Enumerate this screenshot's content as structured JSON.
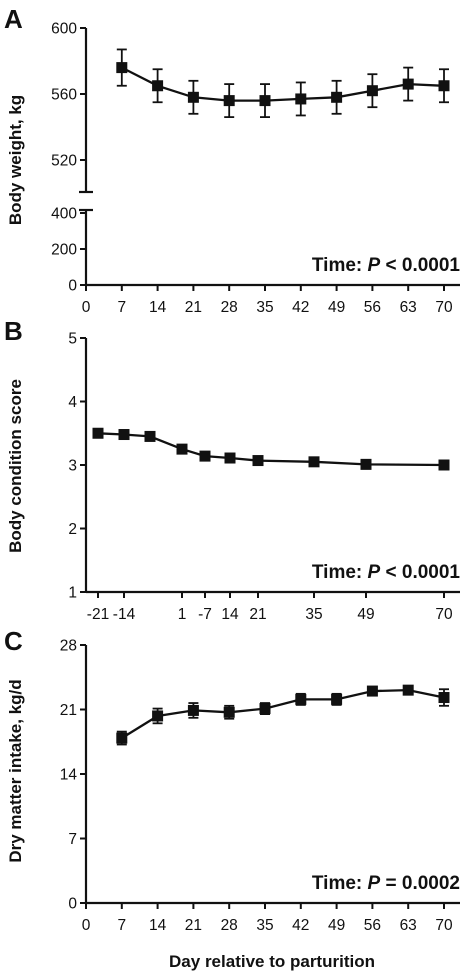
{
  "chart_data": [
    {
      "type": "line",
      "panel_letter": "A",
      "ylabel": "Body weight, kg",
      "annotation": {
        "prefix": "Time: ",
        "p": "P",
        "rest": " < 0.0001"
      },
      "ylim_upper": [
        500,
        600
      ],
      "ylim_lower": [
        0,
        400
      ],
      "yticks_upper": [
        520,
        560,
        600
      ],
      "yticks_lower": [
        0,
        200,
        400
      ],
      "x_ticks": [
        0,
        7,
        14,
        21,
        28,
        35,
        42,
        49,
        56,
        63,
        70
      ],
      "x_tick_labels": [
        "0",
        "7",
        "14",
        "21",
        "28",
        "35",
        "42",
        "49",
        "56",
        "63",
        "70"
      ],
      "series": [
        {
          "x": [
            7,
            14,
            21,
            28,
            35,
            42,
            49,
            56,
            63,
            70
          ],
          "y": [
            576,
            565,
            558,
            556,
            556,
            557,
            558,
            562,
            566,
            565
          ],
          "err": [
            11,
            10,
            10,
            10,
            10,
            10,
            10,
            10,
            10,
            10
          ]
        }
      ]
    },
    {
      "type": "line",
      "panel_letter": "B",
      "ylabel": "Body condition score",
      "annotation": {
        "prefix": "Time: ",
        "p": "P",
        "rest": " < 0.0001"
      },
      "ylim": [
        1,
        5
      ],
      "yticks": [
        1,
        2,
        3,
        4,
        5
      ],
      "x_tick_labels": [
        "-21",
        "-14",
        "1",
        "-7",
        "14",
        "21",
        "35",
        "49",
        "70"
      ],
      "series": [
        {
          "x": [
            -21,
            -14,
            -7,
            1,
            7,
            14,
            21,
            35,
            49,
            70
          ],
          "y": [
            3.5,
            3.48,
            3.45,
            3.25,
            3.14,
            3.11,
            3.07,
            3.05,
            3.01,
            3.0
          ],
          "err": [
            0.04,
            0.04,
            0.04,
            0.04,
            0.04,
            0.04,
            0.04,
            0.04,
            0.04,
            0.04
          ]
        }
      ]
    },
    {
      "type": "line",
      "panel_letter": "C",
      "ylabel": "Dry matter intake, kg/d",
      "xlabel": "Day relative to parturition",
      "annotation": {
        "prefix": "Time: ",
        "p": "P",
        "rest": " = 0.0002"
      },
      "ylim": [
        0,
        28
      ],
      "yticks": [
        0,
        7,
        14,
        21,
        28
      ],
      "x_ticks": [
        0,
        7,
        14,
        21,
        28,
        35,
        42,
        49,
        56,
        63,
        70
      ],
      "x_tick_labels": [
        "0",
        "7",
        "14",
        "21",
        "28",
        "35",
        "42",
        "49",
        "56",
        "63",
        "70"
      ],
      "series": [
        {
          "x": [
            7,
            14,
            21,
            28,
            35,
            42,
            49,
            56,
            63,
            70
          ],
          "y": [
            17.9,
            20.3,
            20.9,
            20.7,
            21.1,
            22.1,
            22.1,
            23.0,
            23.1,
            22.3
          ],
          "err": [
            0.7,
            0.8,
            0.8,
            0.7,
            0.6,
            0.6,
            0.6,
            0.4,
            0.4,
            0.9
          ]
        }
      ]
    }
  ]
}
